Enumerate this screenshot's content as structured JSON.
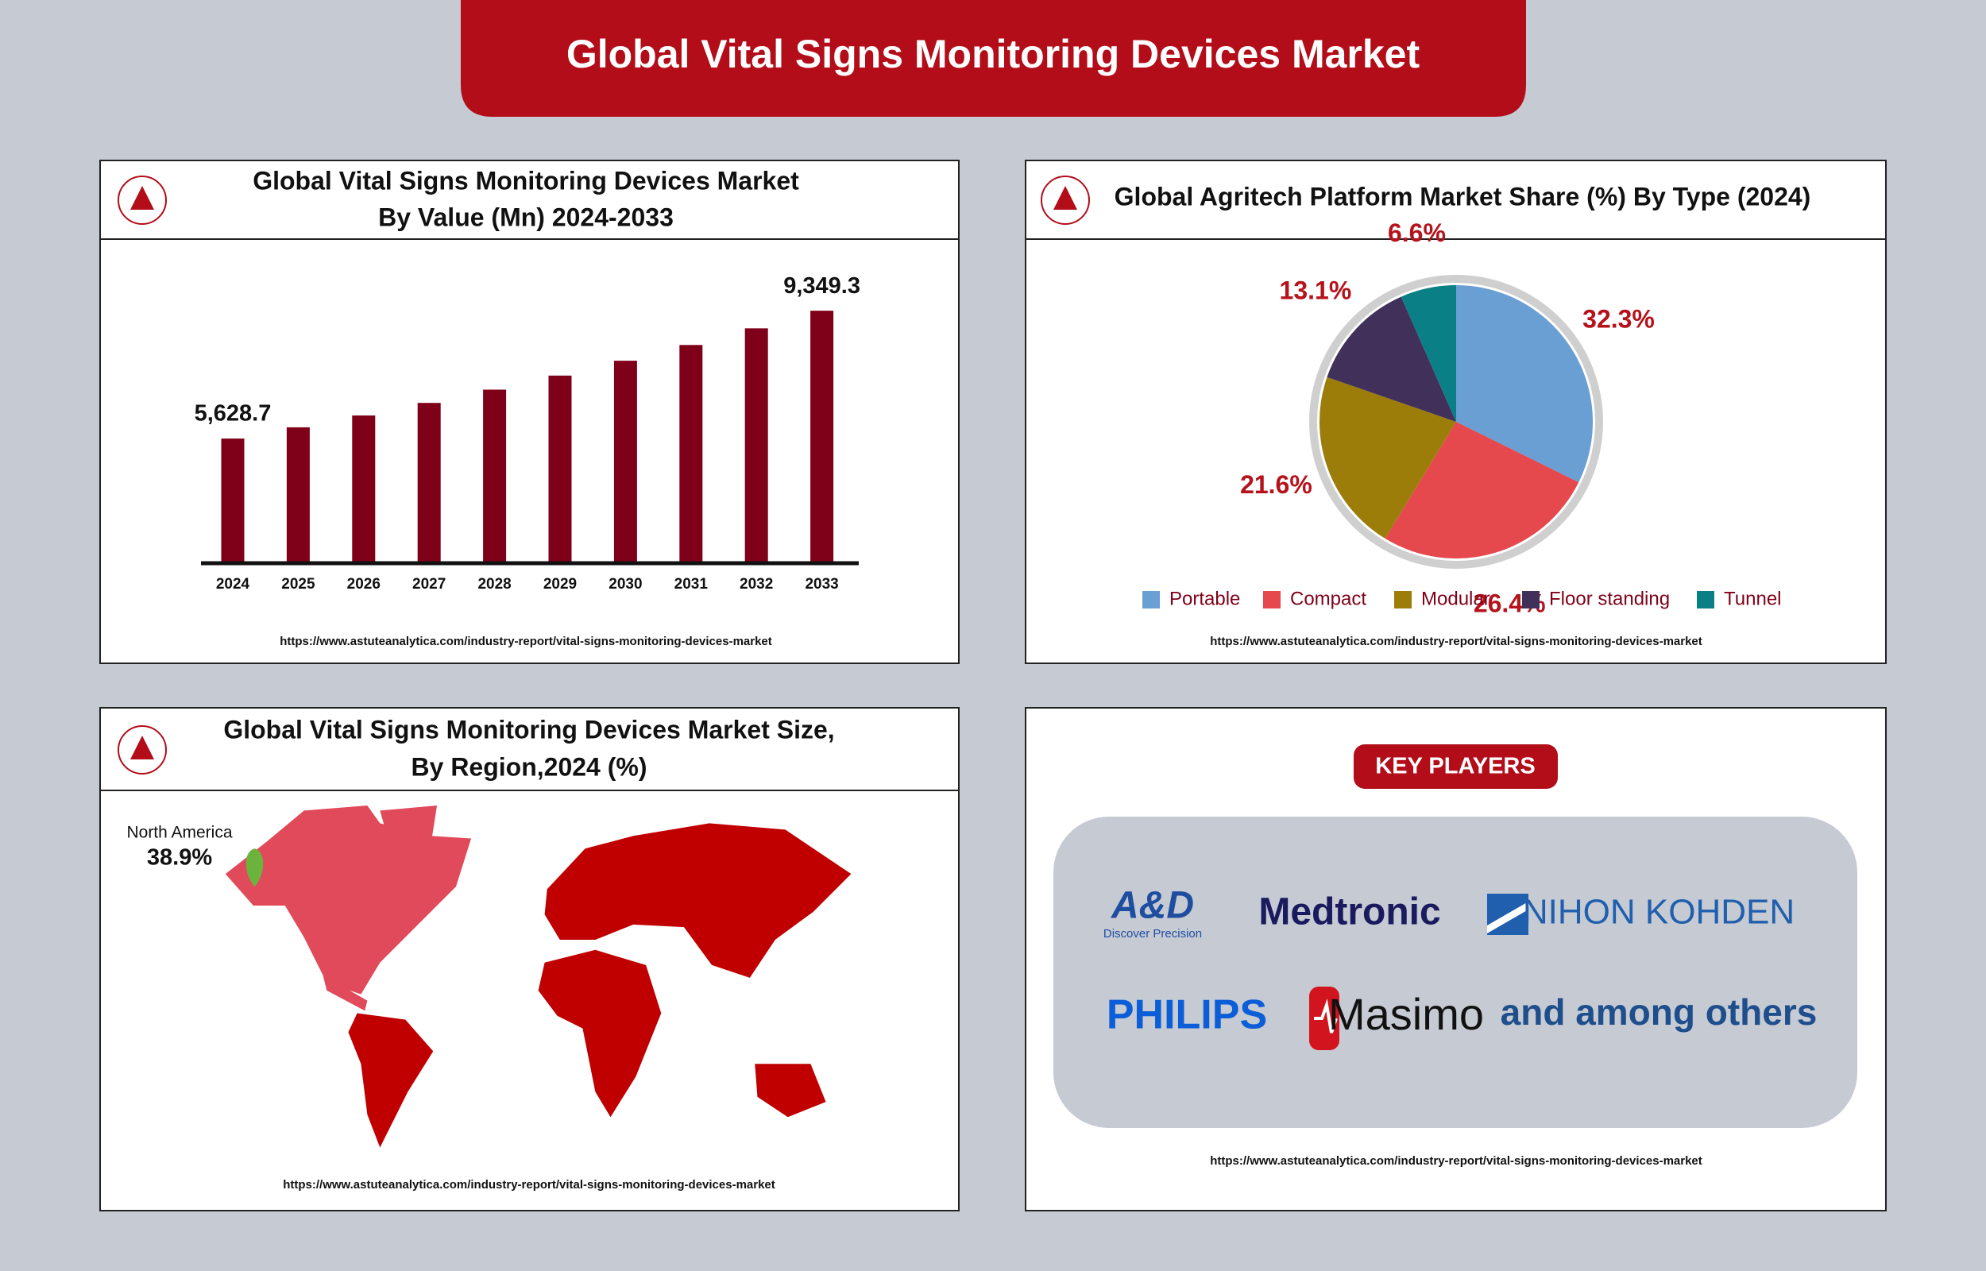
{
  "header": {
    "title": "Global Vital Signs Monitoring Devices Market"
  },
  "chart_data": [
    {
      "type": "bar",
      "title": "Global Vital Signs Monitoring Devices Market",
      "subtitle": "By Value (Mn) 2024-2033",
      "categories": [
        "2024",
        "2025",
        "2026",
        "2027",
        "2028",
        "2029",
        "2030",
        "2031",
        "2032",
        "2033"
      ],
      "values": [
        5628.7,
        5955,
        6300,
        6666,
        7052,
        7461,
        7894,
        8352,
        8836,
        9349.3
      ],
      "value_labels": [
        "5,628.7",
        null,
        null,
        null,
        null,
        null,
        null,
        null,
        null,
        "9,349.3"
      ],
      "color": "#7f0019",
      "ylim": [
        2000,
        10000
      ],
      "source": "https://www.astuteanalytica.com/industry-report/vital-signs-monitoring-devices-market"
    },
    {
      "type": "pie",
      "title": "Global Agritech Platform Market Share (%) By Type (2024)",
      "categories": [
        "Portable",
        "Compact",
        "Modular",
        "Floor standing",
        "Tunnel"
      ],
      "values": [
        32.3,
        26.4,
        21.6,
        13.1,
        6.6
      ],
      "value_labels": [
        "32.3%",
        "26.4%",
        "21.6%",
        "13.1%",
        "6.6%"
      ],
      "colors": [
        "#6a9fd4",
        "#e5484d",
        "#9c7d0a",
        "#40305a",
        "#0a7f86"
      ],
      "legend": "bottom",
      "source": "https://www.astuteanalytica.com/industry-report/vital-signs-monitoring-devices-market"
    }
  ],
  "region_map": {
    "title": "Global Vital Signs Monitoring Devices Market Size,",
    "subtitle": "By Region,2024 (%)",
    "region": "North America",
    "share": "38.9%",
    "source": "https://www.astuteanalytica.com/industry-report/vital-signs-monitoring-devices-market"
  },
  "key_players": {
    "title": "KEY PLAYERS",
    "players": [
      "A&D",
      "Medtronic",
      "NIHON KOHDEN",
      "PHILIPS",
      "Masimo"
    ],
    "tagline": "Discover Precision",
    "others": "and among others",
    "source": "https://www.astuteanalytica.com/industry-report/vital-signs-monitoring-devices-market"
  }
}
